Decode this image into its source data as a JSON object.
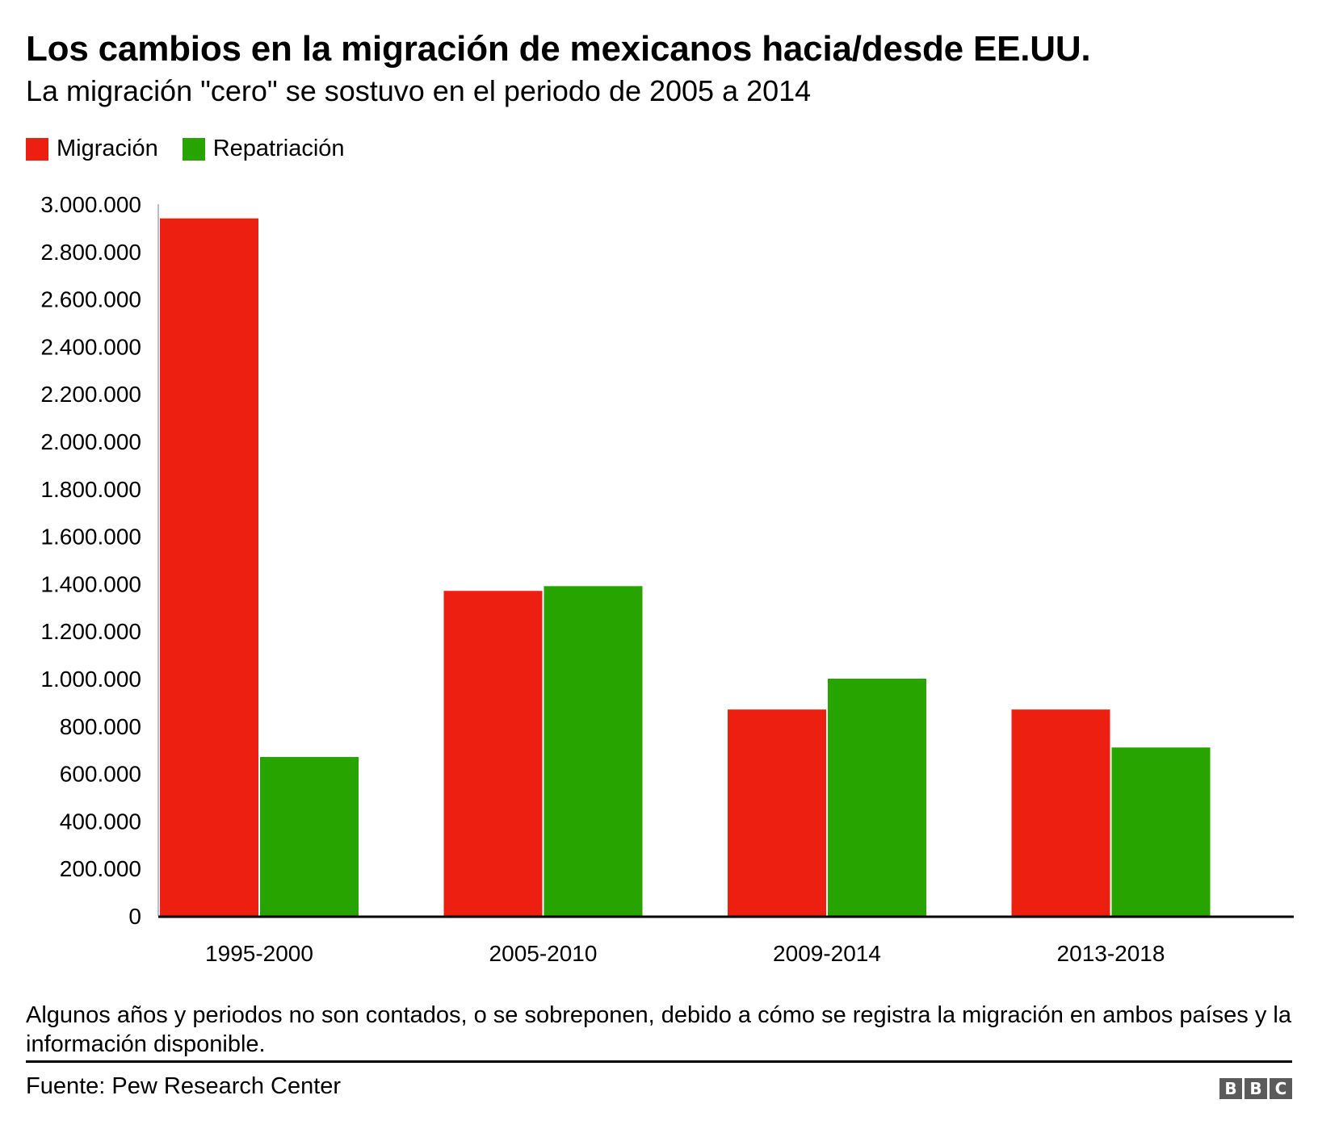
{
  "header": {
    "title": "Los cambios en la migración de mexicanos hacia/desde EE.UU.",
    "subtitle": "La migración \"cero\" se sostuvo en el periodo de 2005 a 2014"
  },
  "legend": [
    {
      "label": "Migración",
      "color": "#ED1F10"
    },
    {
      "label": "Repatriación",
      "color": "#28A400"
    }
  ],
  "chart_data": {
    "type": "bar",
    "title": "Los cambios en la migración de mexicanos hacia/desde EE.UU.",
    "subtitle": "La migración \"cero\" se sostuvo en el periodo de 2005 a 2014",
    "categories": [
      "1995-2000",
      "2005-2010",
      "2009-2014",
      "2013-2018"
    ],
    "series": [
      {
        "name": "Migración",
        "color": "#ED1F10",
        "values": [
          2940000,
          1370000,
          870000,
          870000
        ]
      },
      {
        "name": "Repatriación",
        "color": "#28A400",
        "values": [
          670000,
          1390000,
          1000000,
          710000
        ]
      }
    ],
    "xlabel": "",
    "ylabel": "",
    "ylim": [
      0,
      3000000
    ],
    "yticks": [
      0,
      200000,
      400000,
      600000,
      800000,
      1000000,
      1200000,
      1400000,
      1600000,
      1800000,
      2000000,
      2200000,
      2400000,
      2600000,
      2800000,
      3000000
    ],
    "ytick_labels": [
      "0",
      "200.000",
      "400.000",
      "600.000",
      "800.000",
      "1.000.000",
      "1.200.000",
      "1.400.000",
      "1.600.000",
      "1.800.000",
      "2.000.000",
      "2.200.000",
      "2.400.000",
      "2.600.000",
      "2.800.000",
      "3.000.000"
    ],
    "grid": false,
    "legend_position": "top-left"
  },
  "footer": {
    "note": "Algunos años y periodos no son contados, o se sobreponen, debido a cómo se registra la migración en ambos países y la información disponible.",
    "source": "Fuente: Pew Research Center",
    "logo_letters": [
      "B",
      "B",
      "C"
    ]
  }
}
